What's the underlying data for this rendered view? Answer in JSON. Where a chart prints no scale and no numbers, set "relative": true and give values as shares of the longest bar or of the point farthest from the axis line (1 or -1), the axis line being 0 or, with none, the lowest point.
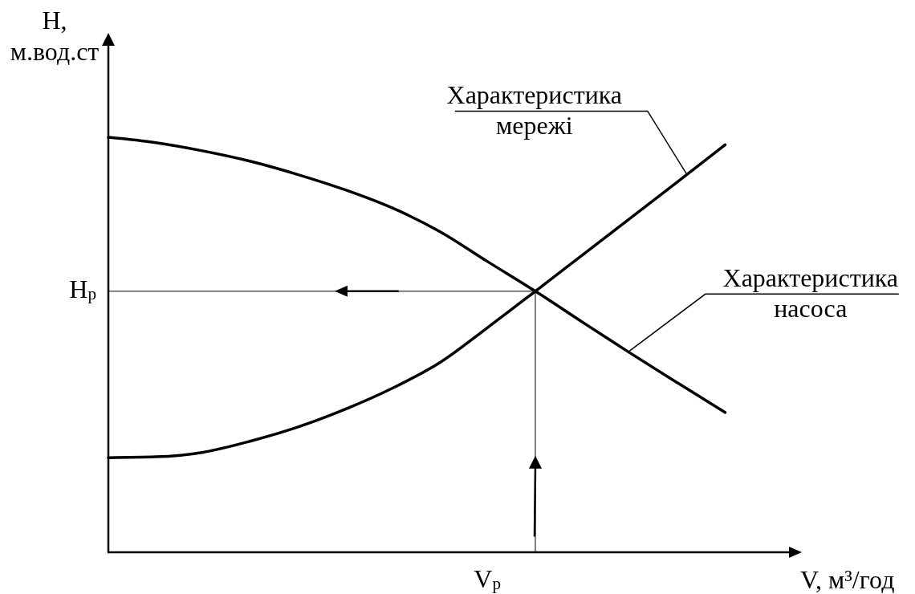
{
  "chart_data": {
    "type": "line",
    "relative": true,
    "xlabel": "V, м³/год",
    "ylabel": "H,\nм.вод.ст",
    "categories": [
      null,
      null,
      null,
      null,
      null,
      null,
      null,
      null,
      null,
      null,
      null,
      null,
      null,
      null
    ],
    "series": [
      {
        "name": "Характеристика насоса",
        "color": "#000000",
        "values": [
          1,
          0.987,
          0.967,
          0.942,
          0.91,
          0.873,
          0.829,
          0.772,
          0.7,
          0.629,
          0.554,
          0.48,
          0.408,
          0.337
        ]
      },
      {
        "name": "Характеристика мережі",
        "color": "#000000",
        "values": [
          0.228,
          0.23,
          0.241,
          0.268,
          0.302,
          0.345,
          0.396,
          0.458,
          0.542,
          0.629,
          0.717,
          0.805,
          0.893,
          0.982
        ]
      }
    ],
    "ref_lines": [
      {
        "axis": "y",
        "value": 0.629,
        "label": "H$_{р}$"
      }
    ],
    "annotations": [
      "V$_{р}$"
    ]
  }
}
